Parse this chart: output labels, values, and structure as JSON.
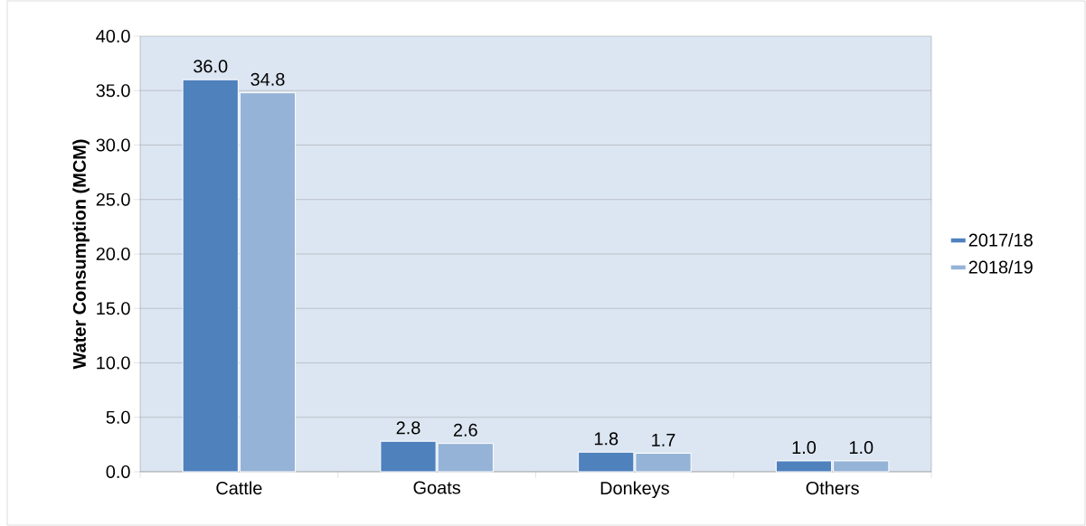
{
  "chart_data": {
    "type": "bar",
    "ylabel": "Water Consumption (MCM)",
    "categories": [
      "Cattle",
      "Goats",
      "Donkeys",
      "Others"
    ],
    "series": [
      {
        "name": "2017/18",
        "color": "#4f81bd",
        "values": [
          36.0,
          2.8,
          1.8,
          1.0
        ],
        "value_labels": [
          "36.0",
          "2.8",
          "1.8",
          "1.0"
        ]
      },
      {
        "name": "2018/19",
        "color": "#95b3d7",
        "values": [
          34.8,
          2.6,
          1.7,
          1.0
        ],
        "value_labels": [
          "34.8",
          "2.6",
          "1.7",
          "1.0"
        ]
      }
    ],
    "ylim": [
      0,
      40
    ],
    "yticks": [
      {
        "value": 0,
        "label": "0.0"
      },
      {
        "value": 5,
        "label": "5.0"
      },
      {
        "value": 10,
        "label": "10.0"
      },
      {
        "value": 15,
        "label": "15.0"
      },
      {
        "value": 20,
        "label": "20.0"
      },
      {
        "value": 25,
        "label": "25.0"
      },
      {
        "value": 30,
        "label": "30.0"
      },
      {
        "value": 35,
        "label": "35.0"
      },
      {
        "value": 40,
        "label": "40.0"
      }
    ],
    "grid": "y",
    "legend": "right"
  }
}
